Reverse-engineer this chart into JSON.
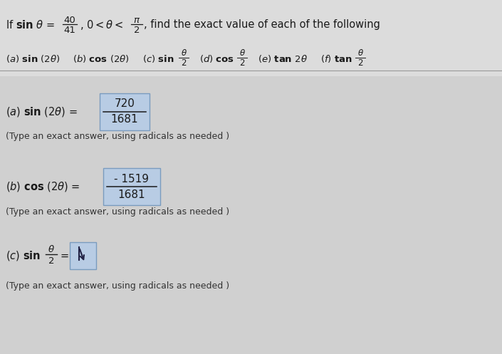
{
  "bg_color": "#e8e8e8",
  "lower_bg": "#d8d8d8",
  "box_color": "#b8cce4",
  "box_edge": "#7a9cbf",
  "text_color": "#1a1a1a",
  "note_color": "#333333",
  "sep_color": "#999999",
  "part_a_num": "720",
  "part_a_den": "1681",
  "part_a_note": "(Type an exact answer, using radicals as needed )",
  "part_b_num": "- 1519",
  "part_b_den": "1681",
  "part_b_note": "(Type an exact answer, using radicals as needed )",
  "part_c_note": "(Type an exact answer, using radicals as needed )"
}
